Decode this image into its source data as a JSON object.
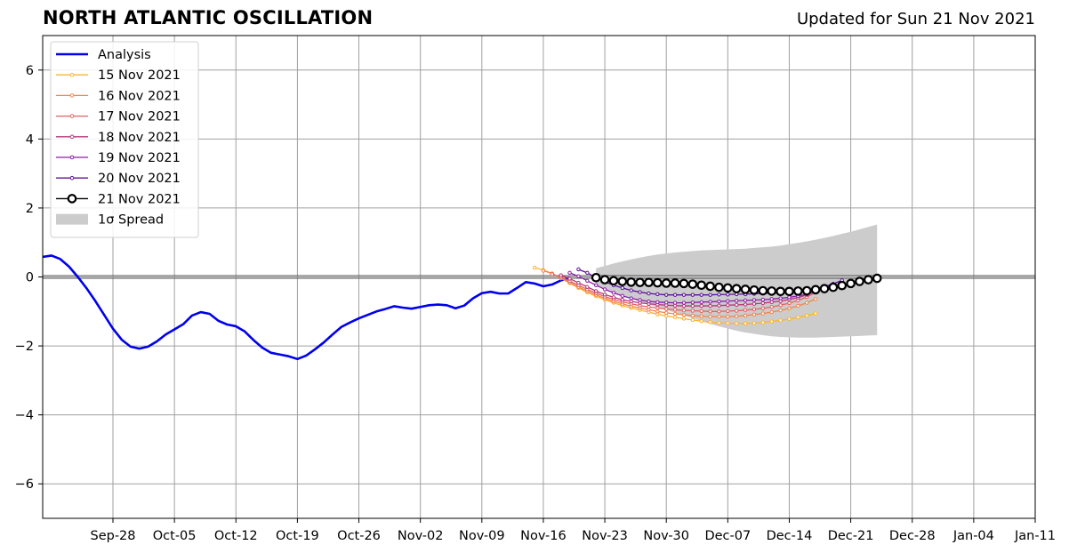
{
  "header": {
    "title": "NORTH ATLANTIC OSCILLATION",
    "updated": "Updated for Sun 21 Nov 2021"
  },
  "chart_data": {
    "type": "line",
    "title": "NORTH ATLANTIC OSCILLATION",
    "subtitle": "Updated for Sun 21 Nov 2021",
    "xlabel": "",
    "ylabel": "",
    "x_range": [
      "2021-09-20",
      "2022-01-11"
    ],
    "ylim": [
      -7,
      7
    ],
    "y_ticks": [
      -6,
      -4,
      -2,
      0,
      2,
      4,
      6
    ],
    "y_tick_labels": [
      "−6",
      "−4",
      "−2",
      "0",
      "2",
      "4",
      "6"
    ],
    "x_ticks": [
      "2021-09-28",
      "2021-10-05",
      "2021-10-12",
      "2021-10-19",
      "2021-10-26",
      "2021-11-02",
      "2021-11-09",
      "2021-11-16",
      "2021-11-23",
      "2021-11-30",
      "2021-12-07",
      "2021-12-14",
      "2021-12-21",
      "2021-12-28",
      "2022-01-04",
      "2022-01-11"
    ],
    "x_tick_labels": [
      "Sep-28",
      "Oct-05",
      "Oct-12",
      "Oct-19",
      "Oct-26",
      "Nov-02",
      "Nov-09",
      "Nov-16",
      "Nov-23",
      "Nov-30",
      "Dec-07",
      "Dec-14",
      "Dec-21",
      "Dec-28",
      "Jan-04",
      "Jan-11"
    ],
    "grid": true,
    "legend_position": "top-left",
    "series": [
      {
        "name": "Analysis",
        "color": "#0000ee",
        "kind": "analysis",
        "start_date": "2021-09-20",
        "values": [
          0.58,
          0.62,
          0.52,
          0.3,
          0.0,
          -0.33,
          -0.7,
          -1.1,
          -1.5,
          -1.82,
          -2.02,
          -2.08,
          -2.02,
          -1.87,
          -1.67,
          -1.52,
          -1.37,
          -1.12,
          -1.02,
          -1.07,
          -1.27,
          -1.38,
          -1.43,
          -1.58,
          -1.83,
          -2.05,
          -2.2,
          -2.25,
          -2.3,
          -2.38,
          -2.28,
          -2.1,
          -1.9,
          -1.67,
          -1.45,
          -1.32,
          -1.2,
          -1.1,
          -1.0,
          -0.93,
          -0.85,
          -0.89,
          -0.92,
          -0.87,
          -0.82,
          -0.8,
          -0.82,
          -0.91,
          -0.83,
          -0.62,
          -0.47,
          -0.43,
          -0.48,
          -0.48,
          -0.32,
          -0.15,
          -0.19,
          -0.27,
          -0.22,
          -0.1,
          -0.02
        ]
      },
      {
        "name": "15 Nov 2021",
        "color": "#fdb42f",
        "kind": "forecast",
        "start_date": "2021-11-15",
        "values": [
          0.27,
          0.2,
          0.1,
          -0.04,
          -0.18,
          -0.32,
          -0.45,
          -0.56,
          -0.66,
          -0.75,
          -0.83,
          -0.9,
          -0.96,
          -1.02,
          -1.08,
          -1.13,
          -1.17,
          -1.21,
          -1.25,
          -1.28,
          -1.31,
          -1.33,
          -1.34,
          -1.35,
          -1.35,
          -1.34,
          -1.32,
          -1.29,
          -1.26,
          -1.22,
          -1.17,
          -1.12,
          -1.06
        ]
      },
      {
        "name": "16 Nov 2021",
        "color": "#f1844b",
        "kind": "forecast",
        "start_date": "2021-11-16",
        "values": [
          0.18,
          0.1,
          -0.03,
          -0.16,
          -0.29,
          -0.41,
          -0.52,
          -0.62,
          -0.71,
          -0.78,
          -0.85,
          -0.9,
          -0.95,
          -1.0,
          -1.04,
          -1.07,
          -1.1,
          -1.12,
          -1.14,
          -1.15,
          -1.15,
          -1.15,
          -1.14,
          -1.12,
          -1.09,
          -1.06,
          -1.02,
          -0.97,
          -0.91,
          -0.84,
          -0.75,
          -0.64
        ]
      },
      {
        "name": "17 Nov 2021",
        "color": "#e16462",
        "kind": "forecast",
        "start_date": "2021-11-17",
        "values": [
          0.08,
          0.0,
          -0.12,
          -0.24,
          -0.36,
          -0.47,
          -0.57,
          -0.65,
          -0.72,
          -0.78,
          -0.83,
          -0.87,
          -0.9,
          -0.93,
          -0.95,
          -0.97,
          -0.98,
          -0.99,
          -1.0,
          -1.0,
          -0.99,
          -0.98,
          -0.96,
          -0.94,
          -0.91,
          -0.87,
          -0.82,
          -0.76,
          -0.68,
          -0.58,
          -0.45
        ]
      },
      {
        "name": "18 Nov 2021",
        "color": "#b73779",
        "kind": "forecast",
        "start_date": "2021-11-18",
        "values": [
          0.05,
          -0.05,
          -0.17,
          -0.29,
          -0.41,
          -0.51,
          -0.59,
          -0.66,
          -0.71,
          -0.75,
          -0.78,
          -0.8,
          -0.82,
          -0.83,
          -0.84,
          -0.84,
          -0.84,
          -0.84,
          -0.83,
          -0.82,
          -0.81,
          -0.8,
          -0.78,
          -0.76,
          -0.73,
          -0.7,
          -0.65,
          -0.6,
          -0.52,
          -0.42,
          -0.3
        ]
      },
      {
        "name": "19 Nov 2021",
        "color": "#8a1fa7",
        "kind": "forecast",
        "start_date": "2021-11-19",
        "values": [
          0.12,
          0.02,
          -0.11,
          -0.24,
          -0.36,
          -0.46,
          -0.55,
          -0.62,
          -0.67,
          -0.71,
          -0.73,
          -0.74,
          -0.75,
          -0.75,
          -0.74,
          -0.73,
          -0.72,
          -0.71,
          -0.7,
          -0.69,
          -0.68,
          -0.67,
          -0.66,
          -0.64,
          -0.62,
          -0.59,
          -0.55,
          -0.5,
          -0.43,
          -0.34,
          -0.22
        ]
      },
      {
        "name": "20 Nov 2021",
        "color": "#5e0f99",
        "kind": "forecast",
        "start_date": "2021-11-20",
        "values": [
          0.22,
          0.12,
          -0.02,
          -0.14,
          -0.24,
          -0.32,
          -0.39,
          -0.44,
          -0.48,
          -0.5,
          -0.52,
          -0.52,
          -0.52,
          -0.52,
          -0.52,
          -0.52,
          -0.51,
          -0.51,
          -0.5,
          -0.5,
          -0.49,
          -0.48,
          -0.47,
          -0.46,
          -0.44,
          -0.42,
          -0.38,
          -0.34,
          -0.28,
          -0.2,
          -0.1
        ]
      },
      {
        "name": "21 Nov 2021",
        "color": "#000000",
        "kind": "current",
        "start_date": "2021-11-22",
        "values": [
          -0.02,
          -0.08,
          -0.11,
          -0.13,
          -0.15,
          -0.16,
          -0.16,
          -0.17,
          -0.18,
          -0.18,
          -0.19,
          -0.21,
          -0.24,
          -0.27,
          -0.3,
          -0.32,
          -0.34,
          -0.36,
          -0.38,
          -0.4,
          -0.41,
          -0.42,
          -0.42,
          -0.41,
          -0.4,
          -0.37,
          -0.34,
          -0.3,
          -0.25,
          -0.19,
          -0.13,
          -0.08,
          -0.04
        ]
      }
    ],
    "spread": {
      "name": "1σ Spread",
      "color": "#cccccc",
      "start_date": "2021-11-22",
      "upper": [
        0.25,
        0.32,
        0.39,
        0.45,
        0.51,
        0.56,
        0.61,
        0.65,
        0.68,
        0.71,
        0.73,
        0.75,
        0.77,
        0.78,
        0.79,
        0.8,
        0.81,
        0.82,
        0.84,
        0.86,
        0.88,
        0.91,
        0.95,
        0.99,
        1.03,
        1.08,
        1.13,
        1.19,
        1.25,
        1.31,
        1.38,
        1.45,
        1.52
      ],
      "lower": [
        -0.25,
        -0.35,
        -0.45,
        -0.54,
        -0.63,
        -0.72,
        -0.8,
        -0.88,
        -0.96,
        -1.04,
        -1.12,
        -1.2,
        -1.28,
        -1.36,
        -1.43,
        -1.5,
        -1.56,
        -1.61,
        -1.65,
        -1.69,
        -1.72,
        -1.74,
        -1.75,
        -1.76,
        -1.76,
        -1.76,
        -1.75,
        -1.74,
        -1.73,
        -1.72,
        -1.71,
        -1.7,
        -1.69
      ]
    }
  }
}
